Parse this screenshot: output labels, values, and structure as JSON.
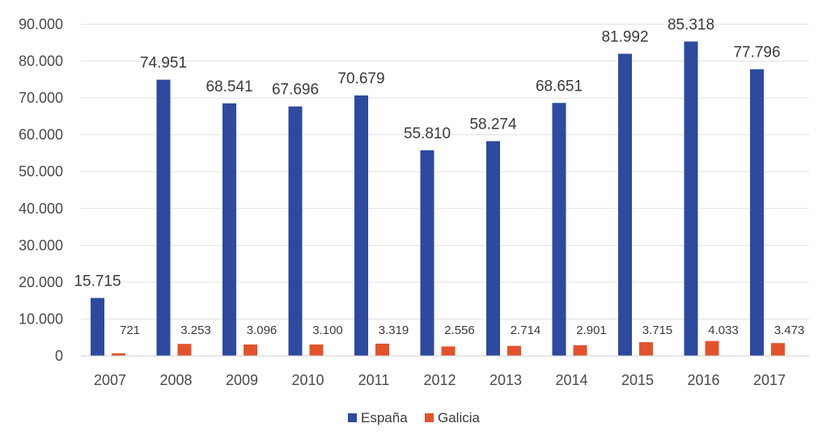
{
  "chart_data": {
    "type": "bar",
    "categories": [
      "2007",
      "2008",
      "2009",
      "2010",
      "2011",
      "2012",
      "2013",
      "2014",
      "2015",
      "2016",
      "2017"
    ],
    "series": [
      {
        "name": "España",
        "color": "#2e4a9e",
        "values": [
          15715,
          74951,
          68541,
          67696,
          70679,
          55810,
          58274,
          68651,
          81992,
          85318,
          77796
        ],
        "labels": [
          "15.715",
          "74.951",
          "68.541",
          "67.696",
          "70.679",
          "55.810",
          "58.274",
          "68.651",
          "81.992",
          "85.318",
          "77.796"
        ]
      },
      {
        "name": "Galicia",
        "color": "#e2532c",
        "values": [
          721,
          3253,
          3096,
          3100,
          3319,
          2556,
          2714,
          2901,
          3715,
          4033,
          3473
        ],
        "labels": [
          "721",
          "3.253",
          "3.096",
          "3.100",
          "3.319",
          "2.556",
          "2.714",
          "2.901",
          "3.715",
          "4.033",
          "3.473"
        ]
      }
    ],
    "ylim": [
      0,
      90000
    ],
    "yticks": [
      0,
      10000,
      20000,
      30000,
      40000,
      50000,
      60000,
      70000,
      80000,
      90000
    ],
    "ytick_labels": [
      "0",
      "10.000",
      "20.000",
      "30.000",
      "40.000",
      "50.000",
      "60.000",
      "70.000",
      "80.000",
      "90.000"
    ],
    "grid": true,
    "legend_position": "bottom",
    "title": "",
    "xlabel": "",
    "ylabel": ""
  }
}
